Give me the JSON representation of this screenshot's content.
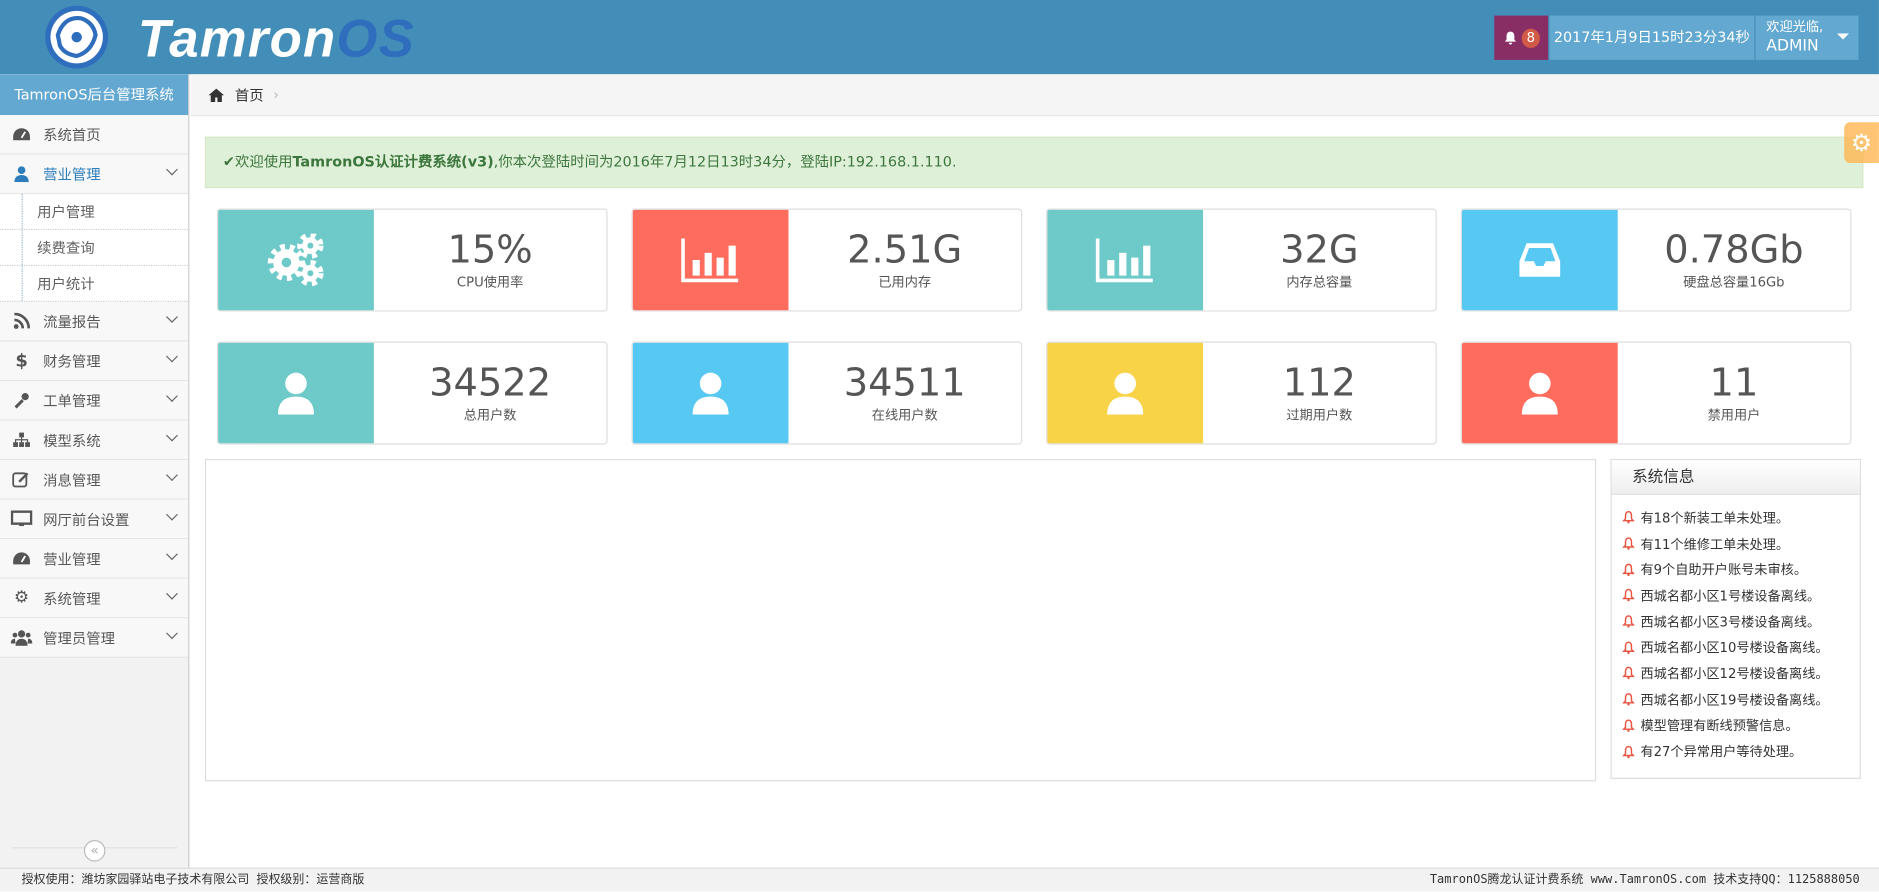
{
  "header": {
    "brand_main": "Tamron",
    "brand_accent": "OS",
    "notification_count": "8",
    "datetime": "2017年1月9日15时23分34秒",
    "welcome": "欢迎光临,",
    "username": "ADMIN"
  },
  "sidebar": {
    "title": "TamronOS后台管理系统",
    "items": [
      {
        "label": "系统首页",
        "icon": "dashboard-icon"
      },
      {
        "label": "营业管理",
        "icon": "user-icon",
        "open": true,
        "children": [
          "用户管理",
          "续费查询",
          "用户统计"
        ]
      },
      {
        "label": "流量报告",
        "icon": "rss-icon"
      },
      {
        "label": "财务管理",
        "icon": "dollar-icon"
      },
      {
        "label": "工单管理",
        "icon": "wrench-icon"
      },
      {
        "label": "模型系统",
        "icon": "sitemap-icon"
      },
      {
        "label": "消息管理",
        "icon": "edit-icon"
      },
      {
        "label": "网厅前台设置",
        "icon": "desktop-icon"
      },
      {
        "label": "营业管理",
        "icon": "dashboard-icon"
      },
      {
        "label": "系统管理",
        "icon": "gears-icon"
      },
      {
        "label": "管理员管理",
        "icon": "users-icon"
      }
    ],
    "collapse_glyph": "«"
  },
  "breadcrumb": {
    "home": "首页",
    "sep": "›"
  },
  "alert": {
    "prefix": "欢迎使用",
    "bold": "TamronOS认证计费系统(v3)",
    "suffix": ",你本次登陆时间为2016年7月12日13时34分，登陆IP:192.168.1.110."
  },
  "cards": [
    {
      "value": "15%",
      "label": "CPU使用率",
      "icon": "gears-icon",
      "color": "#6ecac8"
    },
    {
      "value": "2.51G",
      "label": "已用内存",
      "icon": "bar-chart-icon",
      "color": "#fe6c5e"
    },
    {
      "value": "32G",
      "label": "内存总容量",
      "icon": "bar-chart-icon",
      "color": "#6ecac8"
    },
    {
      "value": "0.78Gb",
      "label": "硬盘总容量16Gb",
      "icon": "inbox-icon",
      "color": "#57c8f2"
    },
    {
      "value": "34522",
      "label": "总用户数",
      "icon": "user-icon",
      "color": "#6ecac8"
    },
    {
      "value": "34511",
      "label": "在线用户数",
      "icon": "user-icon",
      "color": "#57c8f2"
    },
    {
      "value": "112",
      "label": "过期用户数",
      "icon": "user-icon",
      "color": "#f8d347"
    },
    {
      "value": "11",
      "label": "禁用用户",
      "icon": "user-icon",
      "color": "#fe6c5e"
    }
  ],
  "system_info": {
    "title": "系统信息",
    "items": [
      "有18个新装工单未处理。",
      "有11个维修工单未处理。",
      "有9个自助开户账号未审核。",
      "西城名都小区1号楼设备离线。",
      "西城名都小区3号楼设备离线。",
      "西城名都小区10号楼设备离线。",
      "西城名都小区12号楼设备离线。",
      "西城名都小区19号楼设备离线。",
      "模型管理有断线预警信息。",
      "有27个异常用户等待处理。"
    ]
  },
  "footer": {
    "left": "授权使用：潍坊家园驿站电子技术有限公司 授权级别：运营商版",
    "right": "TamronOS腾龙认证计费系统 www.TamronOS.com 技术支持QQ：1125888050"
  }
}
